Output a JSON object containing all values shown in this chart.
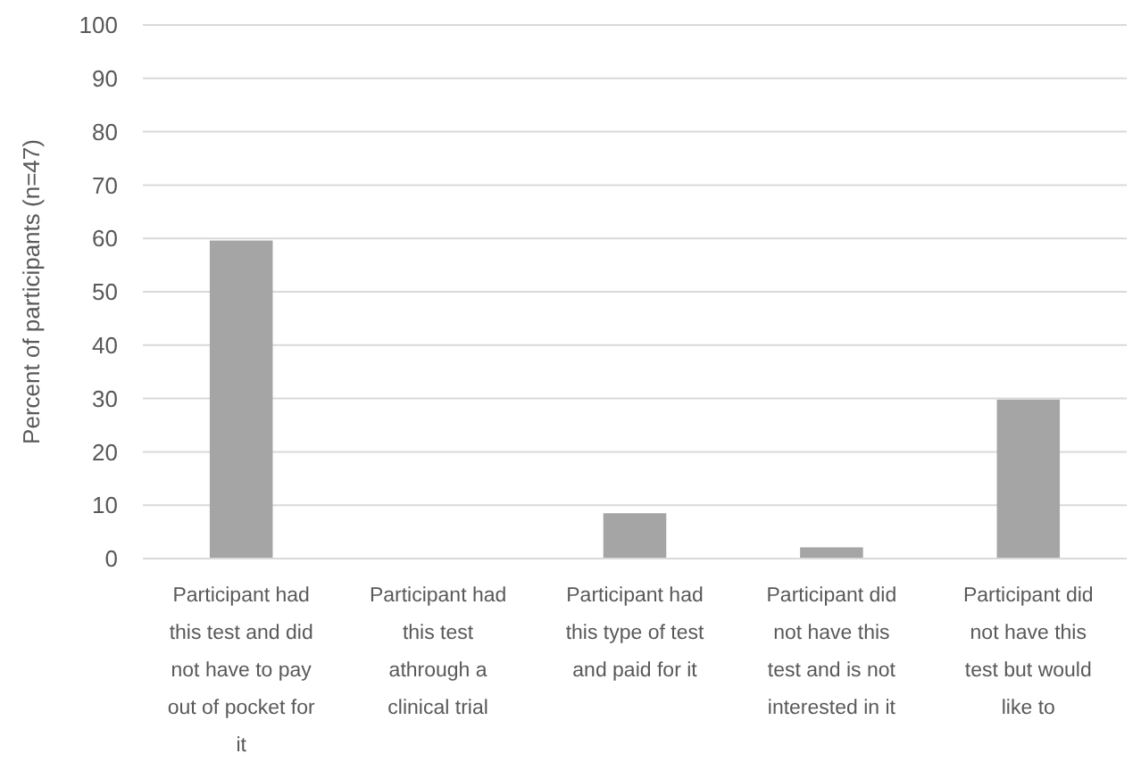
{
  "chart_data": {
    "type": "bar",
    "ylabel": "Percent of participants (n=47)",
    "categories": [
      "Participant had this test and did not have to pay out of pocket for it",
      "Participant had this test athrough a clinical trial",
      "Participant had this type of test and paid for it",
      "Participant did not have this test and is not interested in it",
      "Participant did not have this test but would like to"
    ],
    "values": [
      59.6,
      0,
      8.5,
      2.1,
      29.8
    ],
    "color": "#a5a5a5",
    "ylim": [
      0,
      100
    ],
    "yticks": [
      0,
      10,
      20,
      30,
      40,
      50,
      60,
      70,
      80,
      90,
      100
    ],
    "grid": "y"
  }
}
